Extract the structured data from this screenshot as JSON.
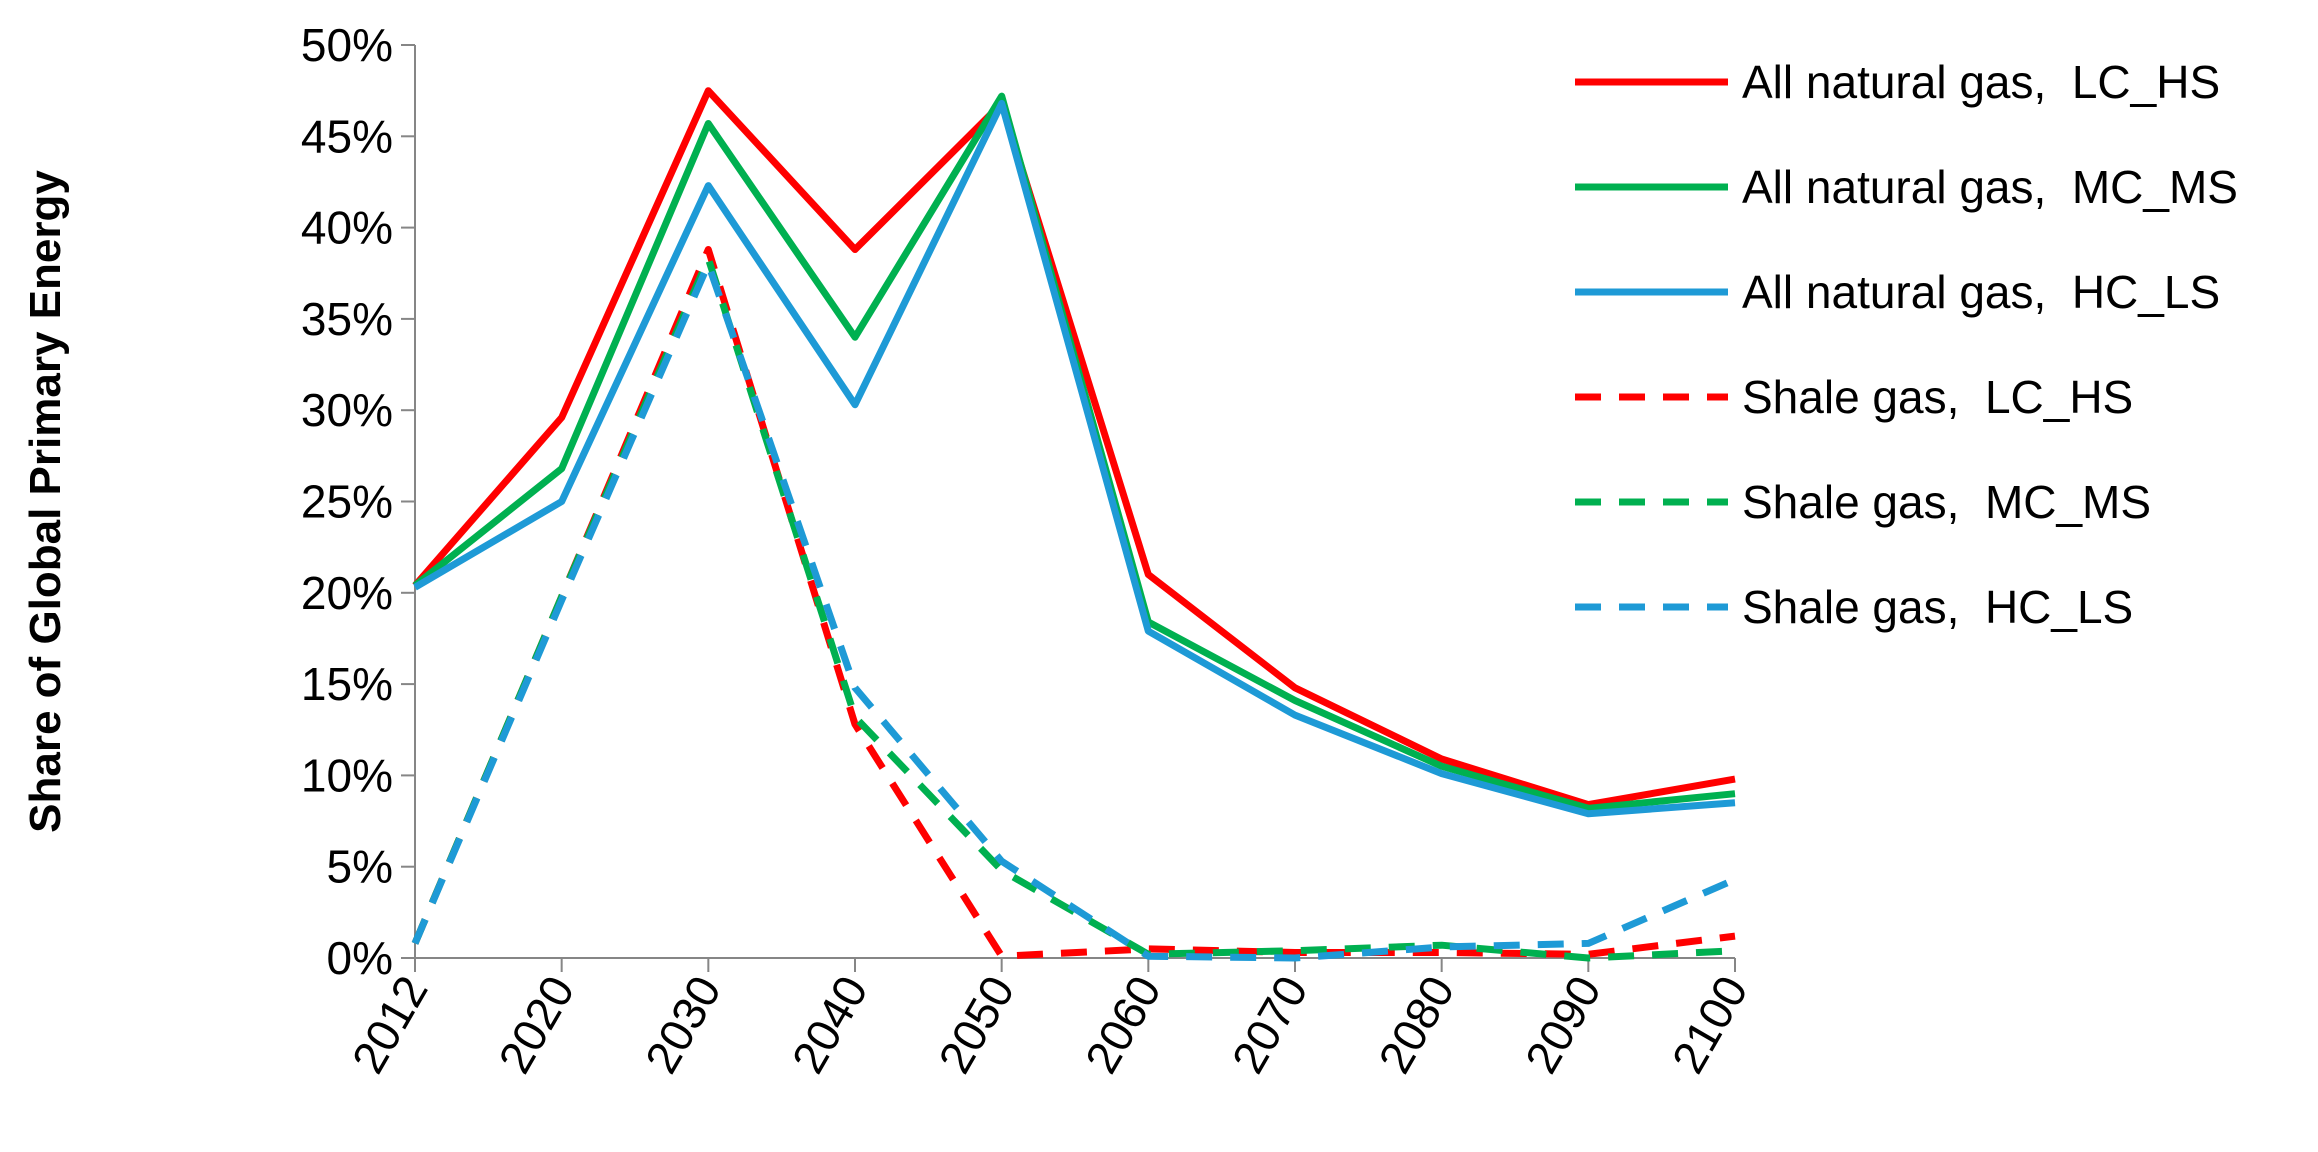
{
  "chart_data": {
    "type": "line",
    "title": "",
    "xlabel": "",
    "ylabel": "Share of Global Primary Energy",
    "categories": [
      "2012",
      "2020",
      "2030",
      "2040",
      "2050",
      "2060",
      "2070",
      "2080",
      "2090",
      "2100"
    ],
    "y_ticks": [
      "0%",
      "5%",
      "10%",
      "15%",
      "20%",
      "25%",
      "30%",
      "35%",
      "40%",
      "45%",
      "50%"
    ],
    "ylim": [
      0,
      50
    ],
    "grid": false,
    "legend_position": "right",
    "series": [
      {
        "name": "All natural gas,  LC_HS",
        "color": "#ff0000",
        "dash": "solid",
        "values": [
          20.4,
          29.6,
          47.5,
          38.8,
          46.8,
          21.0,
          14.8,
          10.9,
          8.4,
          9.8
        ]
      },
      {
        "name": "All natural gas,  MC_MS",
        "color": "#00b050",
        "dash": "solid",
        "values": [
          20.4,
          26.8,
          45.7,
          34.0,
          47.2,
          18.4,
          14.1,
          10.5,
          8.2,
          9.0
        ]
      },
      {
        "name": "All natural gas,  HC_LS",
        "color": "#1e9ad6",
        "dash": "solid",
        "values": [
          20.3,
          25.0,
          42.3,
          30.3,
          46.8,
          17.9,
          13.3,
          10.1,
          7.9,
          8.5
        ]
      },
      {
        "name": "Shale gas,  LC_HS",
        "color": "#ff0000",
        "dash": "dashed",
        "values": [
          0.8,
          19.8,
          38.8,
          12.8,
          0.1,
          0.5,
          0.3,
          0.3,
          0.2,
          1.2
        ]
      },
      {
        "name": "Shale gas,  MC_MS",
        "color": "#00b050",
        "dash": "dashed",
        "values": [
          0.8,
          19.8,
          38.3,
          13.2,
          4.8,
          0.2,
          0.4,
          0.7,
          0.0,
          0.4
        ]
      },
      {
        "name": "Shale gas,  HC_LS",
        "color": "#1e9ad6",
        "dash": "dashed",
        "values": [
          0.8,
          19.6,
          38.0,
          14.8,
          5.3,
          0.1,
          0.0,
          0.6,
          0.8,
          4.3
        ]
      }
    ]
  }
}
